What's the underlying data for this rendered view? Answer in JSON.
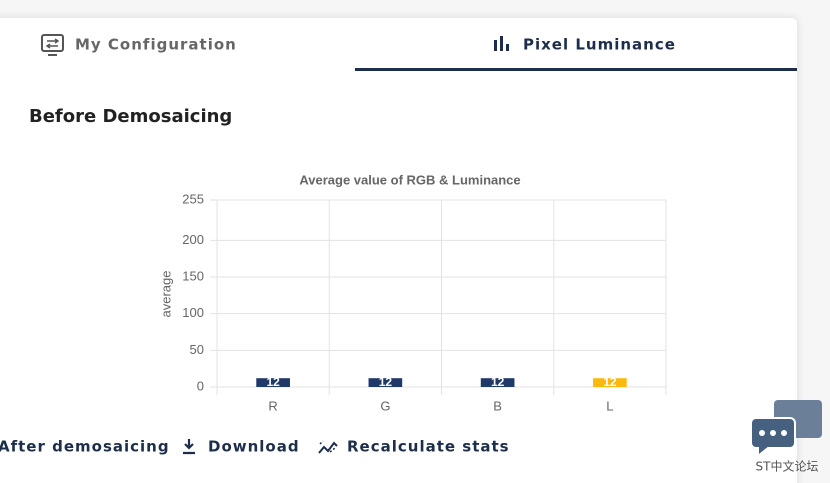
{
  "tabs": [
    "My Configuration",
    "Pixel Luminance"
  ],
  "heading": "Before Demosaicing",
  "chart_data": {
    "type": "bar",
    "title": "Average value of RGB & Luminance",
    "y_label": "average",
    "categories": [
      "R",
      "G",
      "B",
      "L"
    ],
    "values": [
      12,
      12,
      12,
      12
    ],
    "colors": [
      "#1f3a68",
      "#1f3a68",
      "#1f3a68",
      "#fbb80f"
    ],
    "ylim": [
      0,
      255
    ],
    "yticks": [
      0,
      50,
      100,
      150,
      200,
      255
    ],
    "grid": true
  },
  "buttons": [
    "After demosaicing",
    "Download",
    "Recalculate stats"
  ],
  "watermark": "ST中文论坛"
}
